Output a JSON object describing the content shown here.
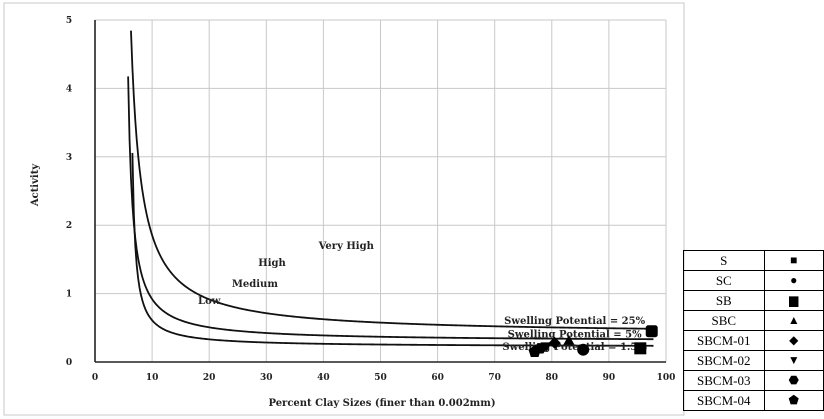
{
  "chart_data": {
    "type": "line",
    "title": "",
    "xlabel": "Percent Clay Sizes (finer than 0.002mm)",
    "ylabel": "Activity",
    "xlim": [
      0,
      100
    ],
    "ylim": [
      0,
      5
    ],
    "x_ticks": [
      "0",
      "10",
      "20",
      "30",
      "40",
      "50",
      "60",
      "70",
      "80",
      "90",
      "100"
    ],
    "y_ticks": [
      "0",
      "1",
      "2",
      "3",
      "4",
      "5"
    ],
    "grid": true,
    "curves": [
      {
        "name": "Swelling Potential = 1.5%",
        "offset": 6,
        "k": 1.56,
        "floor": 0.22
      },
      {
        "name": "Swelling Potential = 5%",
        "offset": 5,
        "k": 3.1,
        "floor": 0.3
      },
      {
        "name": "Swelling Potential = 25%",
        "offset": 4.5,
        "k": 8.0,
        "floor": 0.4
      }
    ],
    "region_labels": [
      {
        "text": "Low",
        "x": 20,
        "y": 0.85
      },
      {
        "text": "Medium",
        "x": 28,
        "y": 1.1
      },
      {
        "text": "High",
        "x": 31,
        "y": 1.4
      },
      {
        "text": "Very High",
        "x": 44,
        "y": 1.65
      }
    ],
    "curve_labels": [
      {
        "text": "Swelling Potential = 25%",
        "x": 84,
        "y": 0.6
      },
      {
        "text": "Swelling Potential = 5%",
        "x": 84,
        "y": 0.4
      },
      {
        "text": "Swelling Potential = 1.5%",
        "x": 84,
        "y": 0.22
      }
    ],
    "series": [
      {
        "name": "S",
        "symbol": "square",
        "x": [
          95.5
        ],
        "y": [
          0.2
        ]
      },
      {
        "name": "SC",
        "symbol": "circle",
        "x": [
          85.5
        ],
        "y": [
          0.18
        ]
      },
      {
        "name": "SB",
        "symbol": "rounded-square",
        "x": [
          97.5
        ],
        "y": [
          0.45
        ]
      },
      {
        "name": "SBC",
        "symbol": "triangle-up",
        "x": [
          83
        ],
        "y": [
          0.3
        ]
      },
      {
        "name": "SBCM-01",
        "symbol": "diamond",
        "x": [
          80.5
        ],
        "y": [
          0.28
        ]
      },
      {
        "name": "SBCM-02",
        "symbol": "triangle-down",
        "x": [
          79
        ],
        "y": [
          0.24
        ]
      },
      {
        "name": "SBCM-03",
        "symbol": "hexagon",
        "x": [
          78
        ],
        "y": [
          0.2
        ]
      },
      {
        "name": "SBCM-04",
        "symbol": "pentagon",
        "x": [
          77
        ],
        "y": [
          0.15
        ]
      }
    ]
  },
  "legend": {
    "rows": [
      {
        "label": "S",
        "glyph": "■"
      },
      {
        "label": "SC",
        "glyph": "●"
      },
      {
        "label": "SB",
        "glyph": "▆"
      },
      {
        "label": "SBC",
        "glyph": "▲"
      },
      {
        "label": "SBCM-01",
        "glyph": "◆"
      },
      {
        "label": "SBCM-02",
        "glyph": "▼"
      },
      {
        "label": "SBCM-03",
        "glyph": "⬣"
      },
      {
        "label": "SBCM-04",
        "glyph": "⬟"
      }
    ]
  }
}
